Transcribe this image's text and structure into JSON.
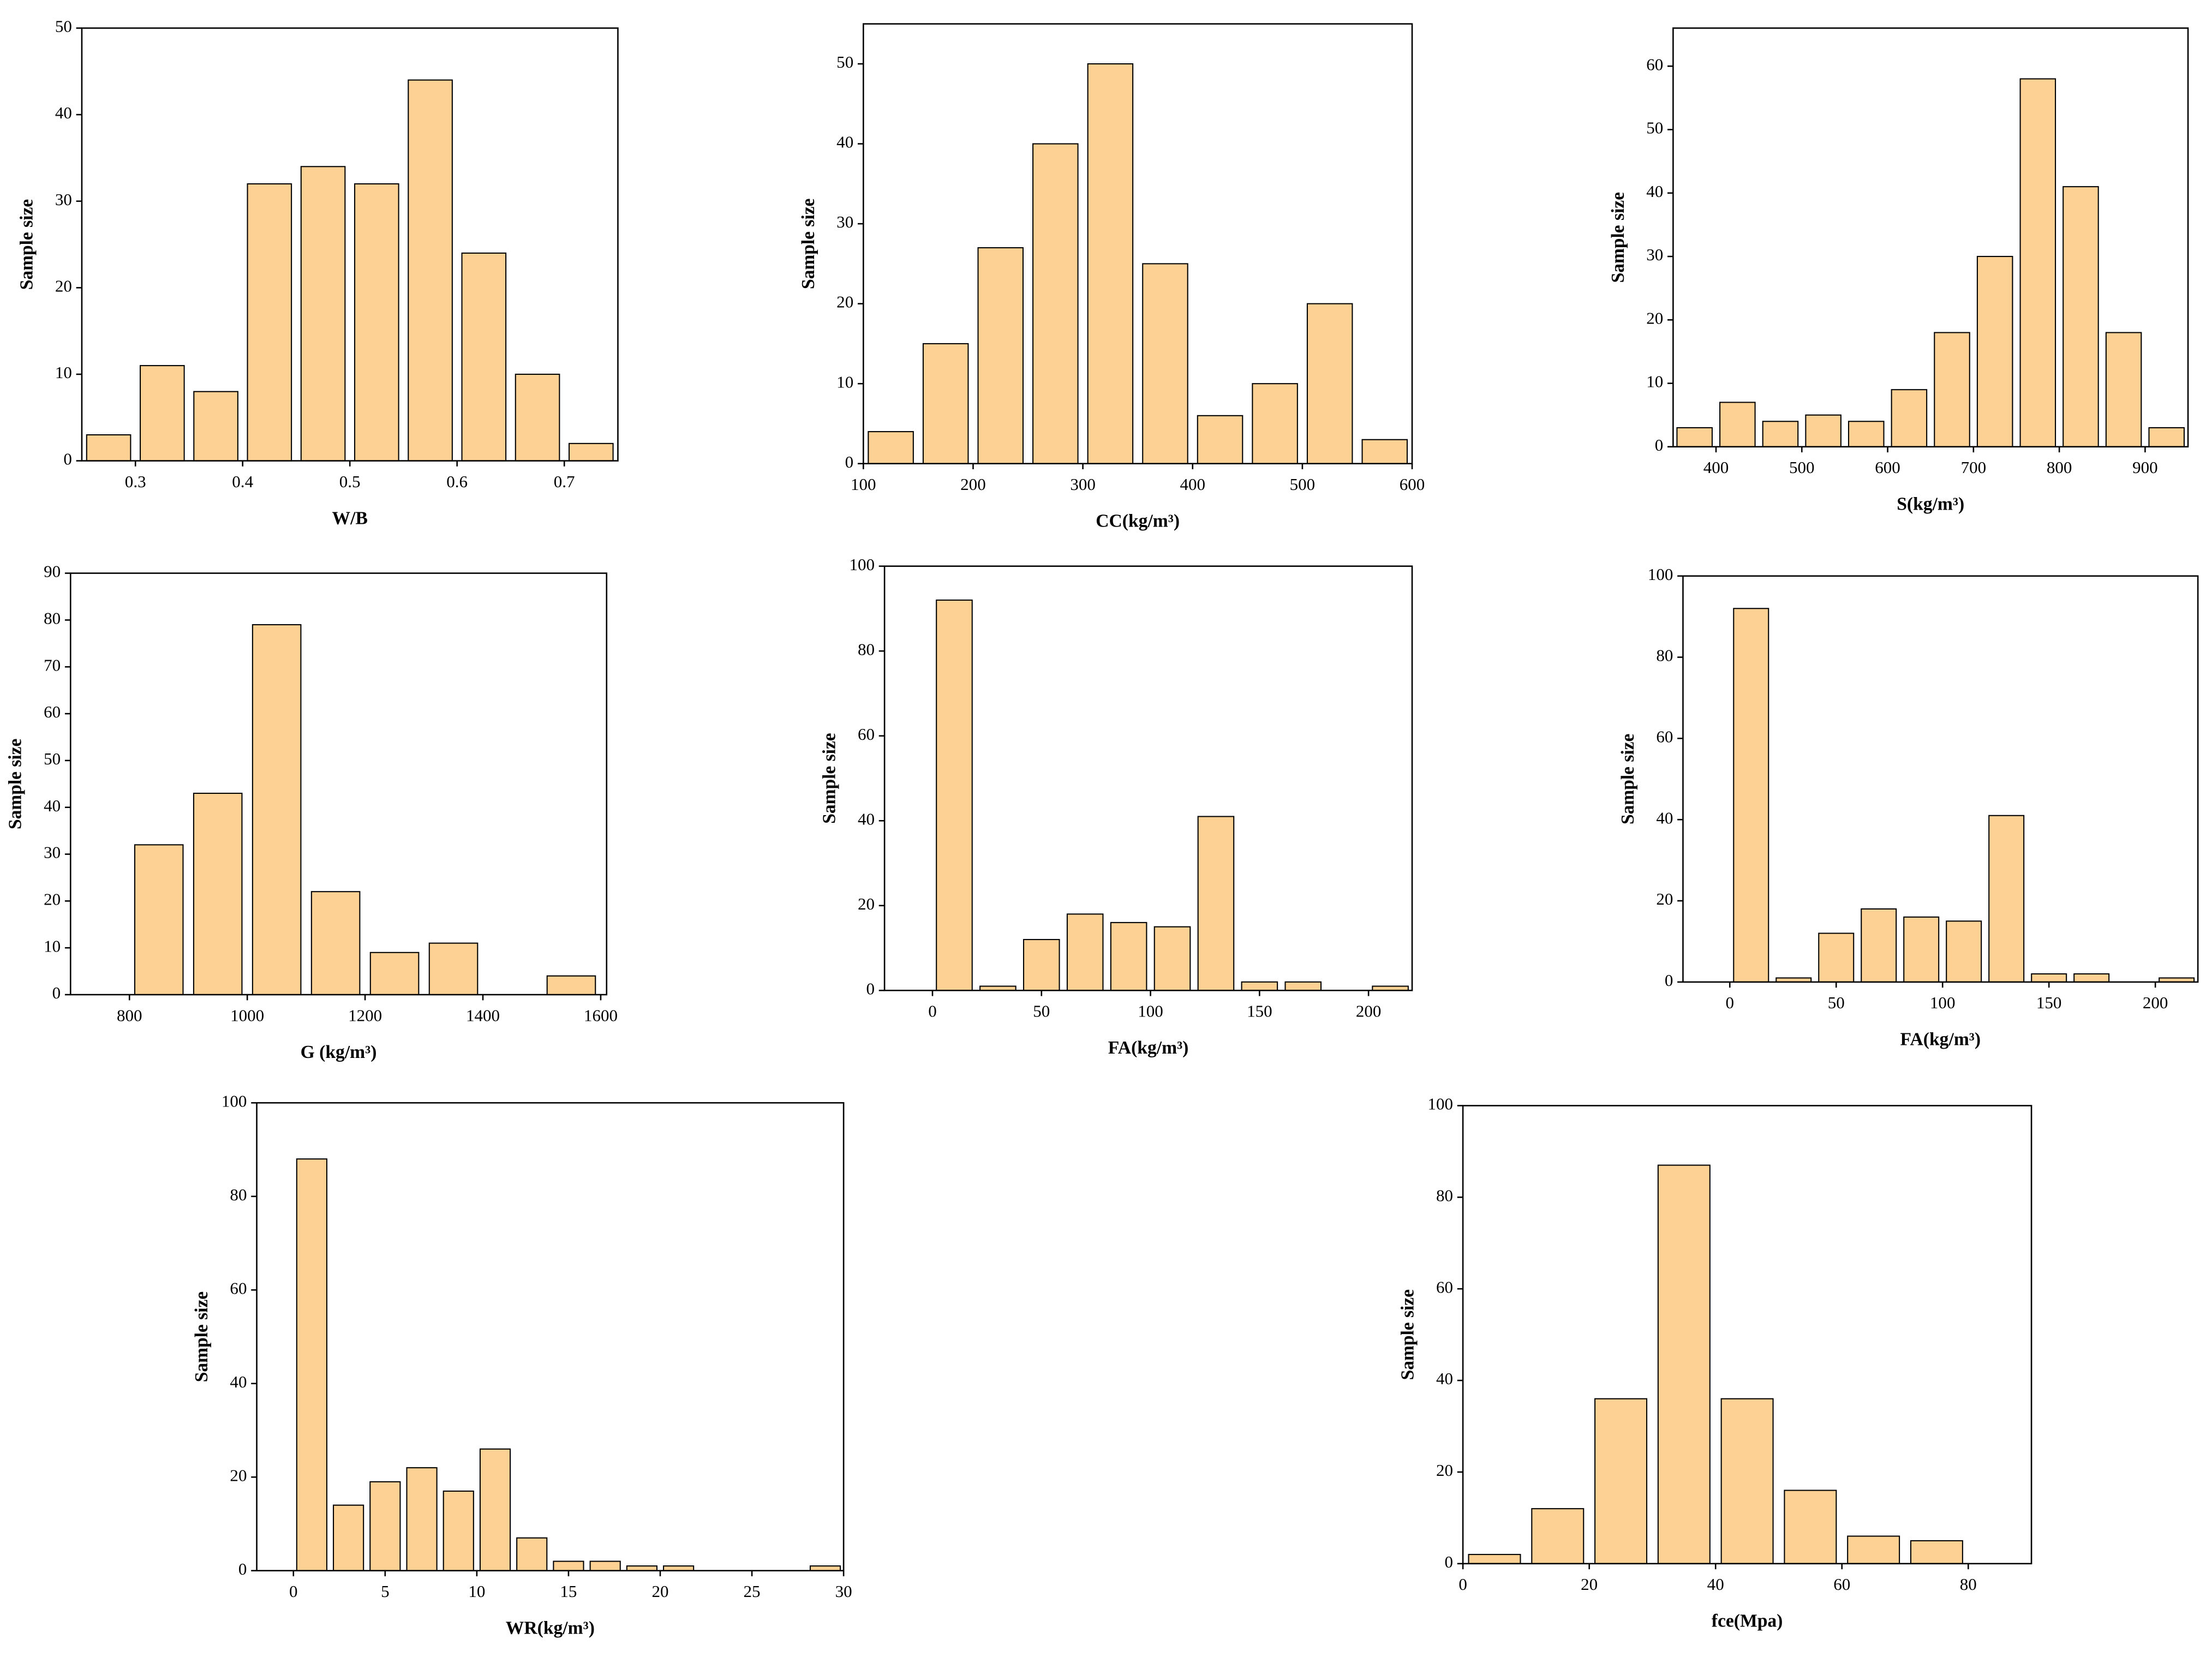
{
  "chart_data": [
    {
      "type": "histogram",
      "x_label": "W/B",
      "y_label": "Sample size",
      "color": "#fdd193",
      "bins": [
        0.25,
        0.3,
        0.35,
        0.4,
        0.45,
        0.5,
        0.55,
        0.6,
        0.65,
        0.7,
        0.75
      ],
      "values": [
        3,
        11,
        8,
        32,
        34,
        32,
        44,
        24,
        10,
        2
      ],
      "xlim": [
        0.25,
        0.75
      ],
      "xticks": [
        0.3,
        0.4,
        0.5,
        0.6,
        0.7
      ],
      "ylim": [
        0,
        50
      ],
      "yticks": [
        0,
        10,
        20,
        30,
        40,
        50
      ]
    },
    {
      "type": "histogram",
      "x_label": "CC(kg/m³)",
      "y_label": "Sample size",
      "color": "#fdd193",
      "bins": [
        100,
        150,
        200,
        250,
        300,
        350,
        400,
        450,
        500,
        550,
        600
      ],
      "values": [
        4,
        15,
        27,
        40,
        50,
        25,
        6,
        10,
        20,
        3
      ],
      "xlim": [
        100,
        600
      ],
      "xticks": [
        100,
        200,
        300,
        400,
        500,
        600
      ],
      "ylim": [
        0,
        55
      ],
      "yticks": [
        0,
        10,
        20,
        30,
        40,
        50
      ]
    },
    {
      "type": "histogram",
      "x_label": "S(kg/m³)",
      "y_label": "Sample size",
      "color": "#fdd193",
      "bins": [
        350,
        400,
        450,
        500,
        550,
        600,
        650,
        700,
        750,
        800,
        850,
        900,
        950
      ],
      "values": [
        3,
        7,
        4,
        5,
        4,
        9,
        18,
        30,
        58,
        41,
        18,
        3
      ],
      "xlim": [
        350,
        950
      ],
      "xticks": [
        400,
        500,
        600,
        700,
        800,
        900
      ],
      "ylim": [
        0,
        66
      ],
      "yticks": [
        0,
        10,
        20,
        30,
        40,
        50,
        60
      ]
    },
    {
      "type": "histogram",
      "x_label": "G (kg/m³)",
      "y_label": "Sample size",
      "color": "#fdd193",
      "bins": [
        800,
        900,
        1000,
        1100,
        1200,
        1300,
        1400,
        1500,
        1600
      ],
      "values": [
        32,
        43,
        79,
        22,
        9,
        11,
        0,
        4
      ],
      "xlim": [
        700,
        1610
      ],
      "xticks": [
        800,
        1000,
        1200,
        1400,
        1600
      ],
      "ylim": [
        0,
        90
      ],
      "yticks": [
        0,
        10,
        20,
        30,
        40,
        50,
        60,
        70,
        80,
        90
      ]
    },
    {
      "type": "histogram",
      "x_label": "FA(kg/m³)",
      "y_label": "Sample size",
      "color": "#fdd193",
      "bins": [
        0,
        20,
        40,
        60,
        80,
        100,
        120,
        140,
        160,
        180,
        200,
        220
      ],
      "values": [
        92,
        1,
        12,
        18,
        16,
        15,
        41,
        2,
        2,
        0,
        1
      ],
      "xlim": [
        -22,
        220
      ],
      "xticks": [
        0,
        50,
        100,
        150,
        200
      ],
      "ylim": [
        0,
        100
      ],
      "yticks": [
        0,
        20,
        40,
        60,
        80,
        100
      ]
    },
    {
      "type": "histogram",
      "x_label": "FA(kg/m³)",
      "y_label": "Sample size",
      "color": "#fdd193",
      "bins": [
        0,
        20,
        40,
        60,
        80,
        100,
        120,
        140,
        160,
        180,
        200,
        220
      ],
      "values": [
        92,
        1,
        12,
        18,
        16,
        15,
        41,
        2,
        2,
        0,
        1
      ],
      "xlim": [
        -22,
        220
      ],
      "xticks": [
        0,
        50,
        100,
        150,
        200
      ],
      "ylim": [
        0,
        100
      ],
      "yticks": [
        0,
        20,
        40,
        60,
        80,
        100
      ]
    },
    {
      "type": "histogram",
      "x_label": "WR(kg/m³)",
      "y_label": "Sample size",
      "color": "#fdd193",
      "bins": [
        0,
        2,
        4,
        6,
        8,
        10,
        12,
        14,
        16,
        18,
        20,
        22,
        24,
        26,
        28,
        30
      ],
      "values": [
        88,
        14,
        19,
        22,
        17,
        26,
        7,
        2,
        2,
        1,
        1,
        0,
        0,
        0,
        1
      ],
      "xlim": [
        -2,
        30
      ],
      "xticks": [
        0,
        5,
        10,
        15,
        20,
        25,
        30
      ],
      "ylim": [
        0,
        100
      ],
      "yticks": [
        0,
        20,
        40,
        60,
        80,
        100
      ]
    },
    {
      "type": "histogram",
      "x_label": "fce(Mpa)",
      "y_label": "Sample size",
      "color": "#fdd193",
      "bins": [
        0,
        10,
        20,
        30,
        40,
        50,
        60,
        70,
        80
      ],
      "values": [
        2,
        12,
        36,
        87,
        36,
        16,
        6,
        5
      ],
      "xlim": [
        0,
        90
      ],
      "xticks": [
        0,
        20,
        40,
        60,
        80
      ],
      "ylim": [
        0,
        100
      ],
      "yticks": [
        0,
        20,
        40,
        60,
        80,
        100
      ]
    }
  ]
}
